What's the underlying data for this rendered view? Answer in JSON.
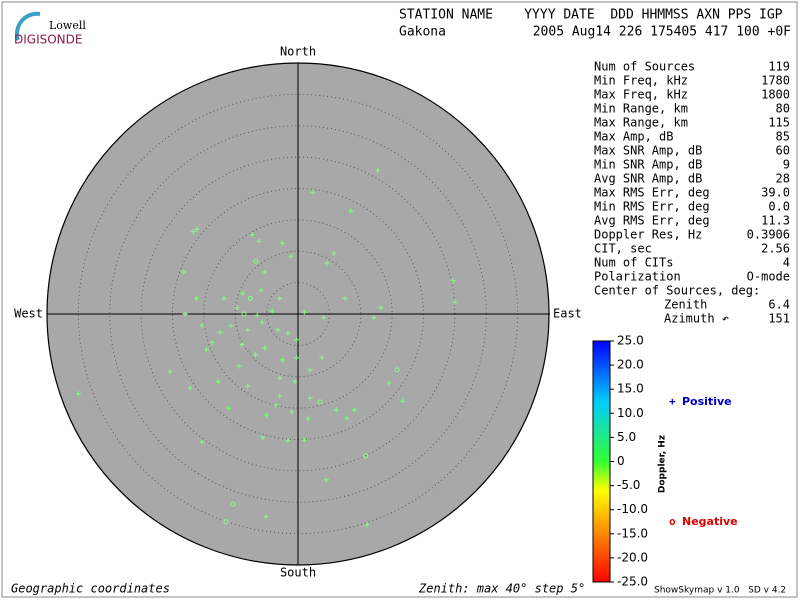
{
  "logo": {
    "top": "Lowell",
    "bottom": "DIGISONDE"
  },
  "header": {
    "labels": "STATION NAME    YYYY DATE  DDD HHMMSS AXN PPS IGP",
    "station": "Gakona",
    "values": "2005 Aug14 226 175405 417 100 +0F"
  },
  "info": {
    "rows": [
      [
        "Num of Sources",
        "119"
      ],
      [
        "Min Freq, kHz",
        "1780"
      ],
      [
        "Max Freq, kHz",
        "1800"
      ],
      [
        "Min Range, km",
        "80"
      ],
      [
        "Max Range, km",
        "115"
      ],
      [
        "Max Amp, dB",
        "85"
      ],
      [
        "Max SNR Amp, dB",
        "60"
      ],
      [
        "Min SNR Amp, dB",
        "9"
      ],
      [
        "Avg SNR Amp, dB",
        "28"
      ],
      [
        "Max RMS Err, deg",
        "39.0"
      ],
      [
        "Min RMS Err, deg",
        "0.0"
      ],
      [
        "Avg RMS Err, deg",
        "11.3"
      ],
      [
        "Doppler Res, Hz",
        "0.3906"
      ],
      [
        "CIT, sec",
        "2.56"
      ],
      [
        "Num of CITs",
        "4"
      ],
      [
        "Polarization",
        "O-mode"
      ]
    ],
    "center_title": "Center of Sources, deg:",
    "center_rows": [
      [
        "Zenith",
        "6.4"
      ],
      [
        "Azimuth ↶",
        "151"
      ]
    ]
  },
  "chart_data": {
    "type": "polar_scatter",
    "directions": {
      "north": "North",
      "south": "South",
      "west": "West",
      "east": "East"
    },
    "rlim": [
      0,
      40
    ],
    "rticks": [
      5,
      10,
      15,
      20,
      25,
      30,
      35,
      40
    ],
    "series": [
      {
        "name": "Positive",
        "marker": "+",
        "color": "#0000cc",
        "point_color": "#80ff80",
        "x": [
          12.7,
          2.4,
          8.4,
          -16.7,
          -16.1,
          -7.3,
          -6.2,
          -2.5,
          5.7,
          4.6,
          -18.2,
          -1.1,
          -5.3,
          24.7,
          -8.8,
          -5.9,
          -11.8,
          -16.2,
          -2.9,
          7.5,
          25.0,
          -9.7,
          1.0,
          -18.0,
          13.2,
          12.1,
          4.1,
          -4.1,
          -6.5,
          -10.7,
          -15.3,
          -12.4,
          -8.0,
          -5.7,
          -3.2,
          -1.6,
          -0.2,
          -13.7,
          -8.9,
          -5.3,
          -14.6,
          -6.8,
          -0.2,
          -2.5,
          3.8,
          -9.4,
          1.9,
          -20.4,
          -12.7,
          -2.9,
          -0.5,
          14.5,
          -17.2,
          -8.0,
          -35.0,
          -2.9,
          1.9,
          16.7,
          -3.5,
          6.1,
          9.0,
          -11.1,
          -1.0,
          -5.0,
          7.8,
          1.6,
          -15.3,
          -5.6,
          -1.6,
          1.0,
          4.5,
          -5.1,
          11.0
        ],
        "y": [
          22.9,
          19.4,
          16.4,
          13.1,
          13.5,
          12.6,
          11.6,
          11.3,
          9.7,
          8.1,
          6.7,
          9.2,
          6.7,
          5.3,
          3.3,
          3.8,
          2.5,
          2.5,
          2.5,
          2.5,
          1.9,
          1.0,
          0.3,
          0.0,
          1.0,
          -0.6,
          -0.6,
          0.5,
          -0.2,
          -1.9,
          -1.8,
          -2.9,
          -2.5,
          -1.3,
          -2.5,
          -3.0,
          -4.1,
          -4.5,
          -4.9,
          -5.4,
          -5.7,
          -6.5,
          -7.0,
          -7.3,
          -7.0,
          -8.3,
          -8.9,
          -9.2,
          -10.8,
          -10.2,
          -10.8,
          -11.0,
          -11.8,
          -11.5,
          -12.7,
          -13.1,
          -13.4,
          -13.9,
          -14.5,
          -15.3,
          -15.3,
          -15.0,
          -15.6,
          -16.1,
          -16.6,
          -16.7,
          -20.4,
          -19.7,
          -20.2,
          -20.1,
          -26.4,
          -32.3,
          -33.6
        ]
      },
      {
        "name": "Negative",
        "marker": "o",
        "color": "#dd0000",
        "point_color": "#80ff80",
        "x": [
          -6.7,
          -7.6,
          -8.6,
          15.8,
          3.5,
          10.8,
          -10.4,
          -11.5
        ],
        "y": [
          8.4,
          2.5,
          0.0,
          -8.9,
          -14.0,
          -22.6,
          -30.3,
          -33.1
        ]
      }
    ],
    "colorbar": {
      "label": "Doppler, Hz",
      "lim": [
        -25,
        25
      ],
      "ticks": [
        {
          "value": 25,
          "label": "25.0"
        },
        {
          "value": 20,
          "label": "20.0"
        },
        {
          "value": 15,
          "label": "15.0"
        },
        {
          "value": 10,
          "label": "10.0"
        },
        {
          "value": 5,
          "label": "5.0"
        },
        0,
        {
          "value": -5,
          "label": "-5.0"
        },
        {
          "value": -10,
          "label": "-10.0"
        },
        {
          "value": -15,
          "label": "-15.0"
        },
        {
          "value": -20,
          "label": "-20.0"
        },
        {
          "value": -25,
          "label": "-25.0"
        }
      ]
    },
    "footer_left": "Geographic coordinates",
    "footer_center": "Zenith: max 40°  step 5°"
  },
  "footer_right": "ShowSkymap v 1.0   SD v 4.2"
}
